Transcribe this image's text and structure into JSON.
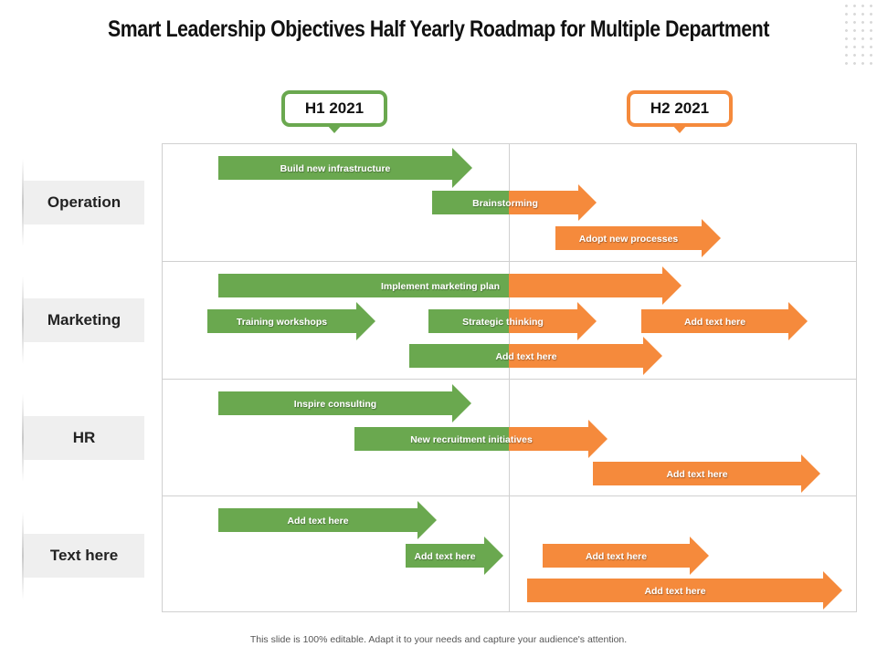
{
  "title": "Smart Leadership Objectives Half Yearly Roadmap for Multiple Department",
  "periods": [
    "H1 2021",
    "H2 2021"
  ],
  "departments": [
    "Operation",
    "Marketing",
    "HR",
    "Text here"
  ],
  "colors": {
    "h1": "#6aa84f",
    "h2": "#f58a3c"
  },
  "tasks": [
    {
      "label": "Build new infrastructure",
      "department": 0
    },
    {
      "label": "Brainstorming",
      "department": 0
    },
    {
      "label": "Adopt new processes",
      "department": 0
    },
    {
      "label": "Implement marketing plan",
      "department": 1
    },
    {
      "label": "Training workshops",
      "department": 1
    },
    {
      "label": "Strategic thinking",
      "department": 1
    },
    {
      "label": "Add text here",
      "department": 1
    },
    {
      "label": "Add text here",
      "department": 1
    },
    {
      "label": "Inspire consulting",
      "department": 2
    },
    {
      "label": "New recruitment initiatives",
      "department": 2
    },
    {
      "label": "Add text here",
      "department": 2
    },
    {
      "label": "Add text here",
      "department": 3
    },
    {
      "label": "Add text here",
      "department": 3
    },
    {
      "label": "Add text here",
      "department": 3
    },
    {
      "label": "Add text here",
      "department": 3
    }
  ],
  "footer": "This slide is 100% editable. Adapt it to your needs and capture your audience's attention."
}
